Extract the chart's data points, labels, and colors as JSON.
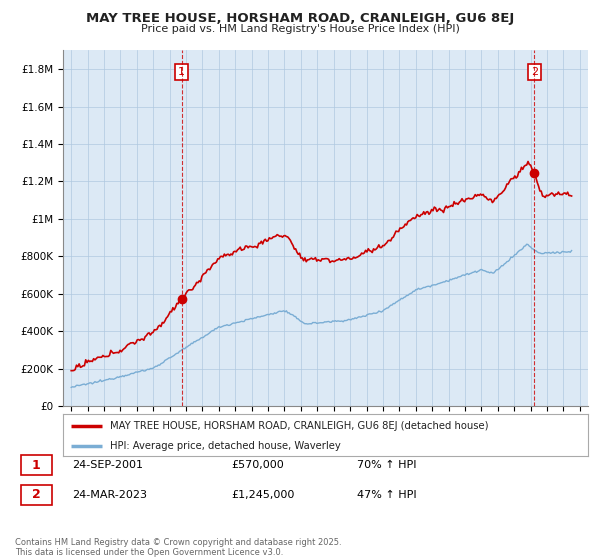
{
  "title": "MAY TREE HOUSE, HORSHAM ROAD, CRANLEIGH, GU6 8EJ",
  "subtitle": "Price paid vs. HM Land Registry's House Price Index (HPI)",
  "legend_line1": "MAY TREE HOUSE, HORSHAM ROAD, CRANLEIGH, GU6 8EJ (detached house)",
  "legend_line2": "HPI: Average price, detached house, Waverley",
  "sale1_date": "24-SEP-2001",
  "sale1_price": "£570,000",
  "sale1_hpi": "70% ↑ HPI",
  "sale2_date": "24-MAR-2023",
  "sale2_price": "£1,245,000",
  "sale2_hpi": "47% ↑ HPI",
  "footer": "Contains HM Land Registry data © Crown copyright and database right 2025.\nThis data is licensed under the Open Government Licence v3.0.",
  "line1_color": "#cc0000",
  "line2_color": "#7aadd4",
  "sale1_x": 2001.73,
  "sale2_x": 2023.23,
  "ylim_max": 1900000,
  "xlim_min": 1994.5,
  "xlim_max": 2026.5,
  "background_color": "#dce9f5",
  "plot_bg_color": "#dce9f5",
  "grid_color": "#b0c8e0",
  "fig_bg_color": "#ffffff"
}
